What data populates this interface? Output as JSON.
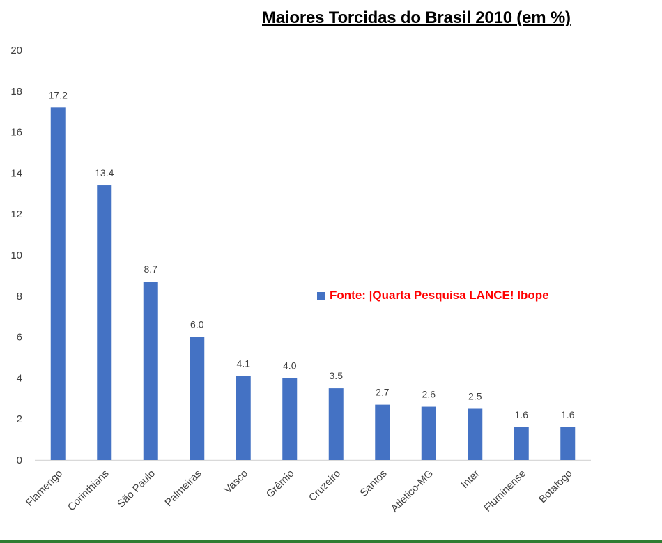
{
  "chart_data": {
    "type": "bar",
    "title": "Maiores Torcidas do Brasil 2010 (em %)",
    "categories": [
      "Flamengo",
      "Corinthians",
      "São Paulo",
      "Palmeiras",
      "Vasco",
      "Grêmio",
      "Cruzeiro",
      "Santos",
      "Atlético-MG",
      "Inter",
      "Fluminense",
      "Botafogo"
    ],
    "values": [
      17.2,
      13.4,
      8.7,
      6.0,
      4.1,
      4.0,
      3.5,
      2.7,
      2.6,
      2.5,
      1.6,
      1.6
    ],
    "data_labels": [
      "17.2",
      "13.4",
      "8.7",
      "6.0",
      "4.1",
      "4.0",
      "3.5",
      "2.7",
      "2.6",
      "2.5",
      "1.6",
      "1.6"
    ],
    "ylim": [
      0,
      20
    ],
    "yticks": [
      0,
      2,
      4,
      6,
      8,
      10,
      12,
      14,
      16,
      18,
      20
    ],
    "xlabel": "",
    "ylabel": "",
    "grid": false,
    "legend": {
      "label": "Fonte: |Quarta Pesquisa LANCE! Ibope",
      "placement": "right-middle"
    }
  },
  "colors": {
    "bar": "#4472c4",
    "legend_text": "#ff0000",
    "axis_text": "#404040",
    "axis_line": "#d9d9d9",
    "border_bottom": "#2e7d32"
  }
}
